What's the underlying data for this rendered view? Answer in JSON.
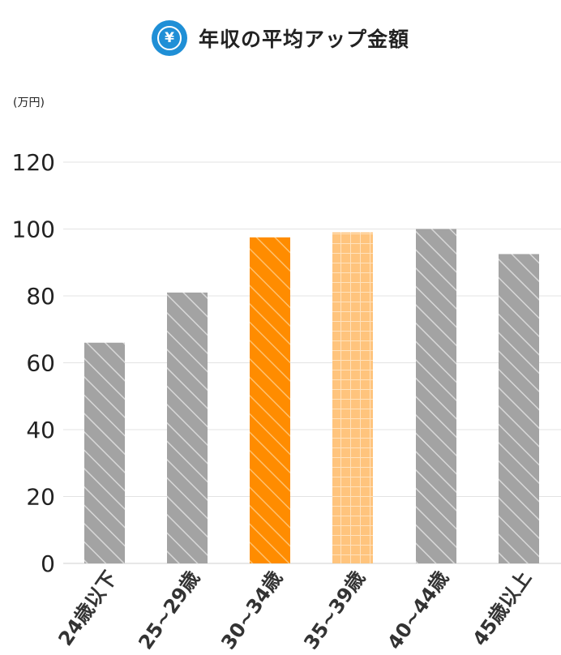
{
  "title": "年収の平均アップ金額",
  "title_icon": "yen-coin-icon",
  "icon_glyph": "¥",
  "unit": "(万円)",
  "colors": {
    "icon_bg": "#1f8fd6",
    "bar_gray": "#a3a3a3",
    "bar_orange": "#ff8c00",
    "bar_light_orange": "#ffc47d",
    "grid": "#e3e3e3"
  },
  "chart_data": {
    "type": "bar",
    "categories": [
      "24歳以下",
      "25~29歳",
      "30~34歳",
      "35~39歳",
      "40~44歳",
      "45歳以上"
    ],
    "values": [
      66,
      81,
      97.5,
      99,
      100,
      92.5
    ],
    "bar_styles": [
      "gray-hatch",
      "gray-hatch",
      "orange-hatch",
      "light-orange-check",
      "gray-hatch",
      "gray-hatch"
    ],
    "ylim": [
      0,
      120
    ],
    "yticks": [
      "0",
      "20",
      "40",
      "60",
      "80",
      "100",
      "120"
    ],
    "ylabel": "(万円)",
    "xlabel": "",
    "grid": true,
    "legend": "none"
  }
}
